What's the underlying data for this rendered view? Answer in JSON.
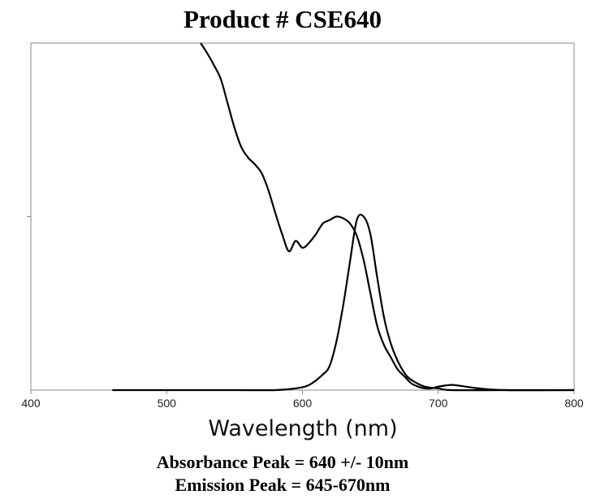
{
  "chart_data": {
    "type": "line",
    "title": "Product # CSE640",
    "xlabel": "Wavelength (nm)",
    "ylabel": "",
    "xlim": [
      400,
      800
    ],
    "ylim": [
      0,
      2
    ],
    "x_ticks": [
      400,
      500,
      600,
      700,
      800
    ],
    "y_ticks": [
      1
    ],
    "grid": false,
    "series": [
      {
        "name": "",
        "x": [
          525,
          530,
          535,
          540,
          545,
          550,
          555,
          560,
          565,
          570,
          575,
          580,
          585,
          590,
          595,
          600,
          605,
          610,
          615,
          620,
          625,
          630,
          635,
          640,
          645,
          650,
          655,
          660,
          665,
          670,
          675,
          680,
          685,
          690,
          695,
          700,
          710,
          720,
          730,
          750,
          800
        ],
        "y": [
          2.0,
          1.94,
          1.87,
          1.79,
          1.65,
          1.51,
          1.4,
          1.34,
          1.3,
          1.25,
          1.15,
          1.02,
          0.9,
          0.8,
          0.86,
          0.82,
          0.85,
          0.9,
          0.96,
          0.98,
          1.0,
          0.99,
          0.96,
          0.89,
          0.75,
          0.56,
          0.37,
          0.26,
          0.19,
          0.12,
          0.08,
          0.04,
          0.02,
          0.01,
          0.01,
          0.02,
          0.03,
          0.02,
          0.01,
          0.0,
          0.0
        ]
      },
      {
        "name": "",
        "x": [
          460,
          500,
          550,
          580,
          595,
          605,
          615,
          620,
          625,
          630,
          635,
          640,
          645,
          650,
          655,
          660,
          665,
          670,
          675,
          680,
          690,
          700,
          710,
          750,
          800
        ],
        "y": [
          0.0,
          0.0,
          0.0,
          0.0,
          0.01,
          0.03,
          0.09,
          0.14,
          0.28,
          0.49,
          0.74,
          0.98,
          1.0,
          0.9,
          0.65,
          0.42,
          0.27,
          0.17,
          0.1,
          0.06,
          0.02,
          0.01,
          0.0,
          0.0,
          0.0
        ]
      }
    ]
  },
  "notes": {
    "absorbance": "Absorbance Peak = 640 +/- 10nm",
    "emission": "Emission Peak = 645-670nm"
  }
}
